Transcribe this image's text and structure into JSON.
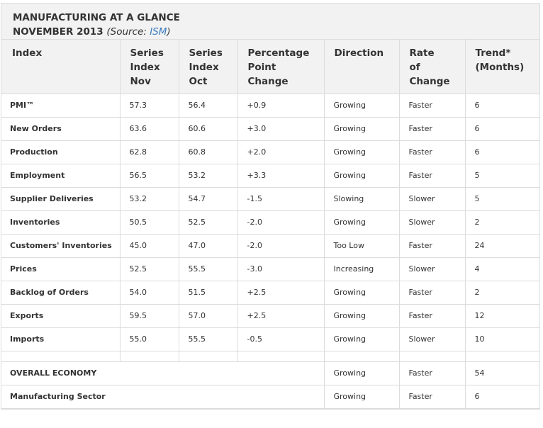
{
  "title": {
    "line1": "MANUFACTURING AT A GLANCE",
    "line2": "NOVEMBER 2013",
    "source_prefix": "(Source: ",
    "source_link": "ISM",
    "source_suffix": ")"
  },
  "headers": {
    "index": "Index",
    "nov": [
      "Series",
      "Index",
      "Nov"
    ],
    "oct": [
      "Series",
      "Index",
      "Oct"
    ],
    "change": [
      "Percentage",
      "Point",
      "Change"
    ],
    "direction": "Direction",
    "rate": [
      "Rate",
      "of",
      "Change"
    ],
    "trend": [
      "Trend*",
      "(Months)"
    ]
  },
  "rows": [
    {
      "name": "PMI™",
      "nov": "57.3",
      "oct": "56.4",
      "change": "+0.9",
      "direction": "Growing",
      "rate": "Faster",
      "trend": "6"
    },
    {
      "name": "New Orders",
      "nov": "63.6",
      "oct": "60.6",
      "change": "+3.0",
      "direction": "Growing",
      "rate": "Faster",
      "trend": "6"
    },
    {
      "name": "Production",
      "nov": "62.8",
      "oct": "60.8",
      "change": "+2.0",
      "direction": "Growing",
      "rate": "Faster",
      "trend": "6"
    },
    {
      "name": "Employment",
      "nov": "56.5",
      "oct": "53.2",
      "change": "+3.3",
      "direction": "Growing",
      "rate": "Faster",
      "trend": "5"
    },
    {
      "name": "Supplier Deliveries",
      "nov": "53.2",
      "oct": "54.7",
      "change": "-1.5",
      "direction": "Slowing",
      "rate": "Slower",
      "trend": "5"
    },
    {
      "name": "Inventories",
      "nov": "50.5",
      "oct": "52.5",
      "change": "-2.0",
      "direction": "Growing",
      "rate": "Slower",
      "trend": "2"
    },
    {
      "name": "Customers' Inventories",
      "nov": "45.0",
      "oct": "47.0",
      "change": "-2.0",
      "direction": "Too Low",
      "rate": "Faster",
      "trend": "24"
    },
    {
      "name": "Prices",
      "nov": "52.5",
      "oct": "55.5",
      "change": "-3.0",
      "direction": "Increasing",
      "rate": "Slower",
      "trend": "4"
    },
    {
      "name": "Backlog of Orders",
      "nov": "54.0",
      "oct": "51.5",
      "change": "+2.5",
      "direction": "Growing",
      "rate": "Faster",
      "trend": "2"
    },
    {
      "name": "Exports",
      "nov": "59.5",
      "oct": "57.0",
      "change": "+2.5",
      "direction": "Growing",
      "rate": "Faster",
      "trend": "12"
    },
    {
      "name": "Imports",
      "nov": "55.0",
      "oct": "55.5",
      "change": "-0.5",
      "direction": "Growing",
      "rate": "Slower",
      "trend": "10"
    }
  ],
  "summary_rows": [
    {
      "name": "OVERALL ECONOMY",
      "direction": "Growing",
      "rate": "Faster",
      "trend": "54"
    },
    {
      "name": "Manufacturing Sector",
      "direction": "Growing",
      "rate": "Faster",
      "trend": "6"
    }
  ]
}
